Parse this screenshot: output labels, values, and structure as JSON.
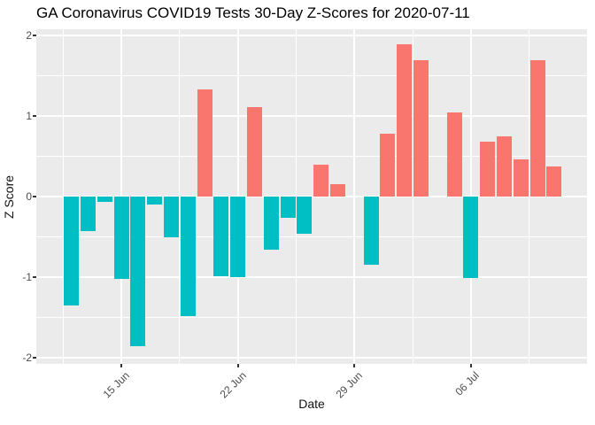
{
  "title": "GA Coronavirus COVID19 Tests 30-Day Z-Scores for 2020-07-11",
  "chart_data": {
    "type": "bar",
    "title": "GA Coronavirus COVID19 Tests 30-Day Z-Scores for 2020-07-11",
    "xlabel": "Date",
    "ylabel": "Z Score",
    "x": [
      "2020-06-12",
      "2020-06-13",
      "2020-06-14",
      "2020-06-15",
      "2020-06-16",
      "2020-06-17",
      "2020-06-18",
      "2020-06-19",
      "2020-06-20",
      "2020-06-21",
      "2020-06-22",
      "2020-06-23",
      "2020-06-24",
      "2020-06-25",
      "2020-06-26",
      "2020-06-27",
      "2020-06-28",
      "2020-06-29",
      "2020-06-30",
      "2020-07-01",
      "2020-07-02",
      "2020-07-03",
      "2020-07-04",
      "2020-07-05",
      "2020-07-06",
      "2020-07-07",
      "2020-07-08",
      "2020-07-09",
      "2020-07-10",
      "2020-07-11"
    ],
    "values": [
      -1.35,
      -0.43,
      -0.07,
      -1.02,
      -1.86,
      -0.1,
      -0.51,
      -1.49,
      1.33,
      -0.99,
      -1.0,
      1.11,
      -0.66,
      -0.26,
      -0.46,
      0.4,
      0.15,
      0.0,
      -0.85,
      0.78,
      1.89,
      1.69,
      0.0,
      1.05,
      -1.01,
      0.68,
      0.75,
      0.46,
      1.7,
      0.37
    ],
    "xticks": [
      {
        "label": "15 Jun",
        "date": "2020-06-15"
      },
      {
        "label": "22 Jun",
        "date": "2020-06-22"
      },
      {
        "label": "29 Jun",
        "date": "2020-06-29"
      },
      {
        "label": "06 Jul",
        "date": "2020-07-06"
      }
    ],
    "yticks": [
      "2",
      "1",
      "0",
      "-1",
      "-2"
    ],
    "ylim": [
      -2.08,
      2.08
    ],
    "grid": "major and minor, white on gray panel",
    "legend": "none",
    "colors": {
      "positive": "#F8766D",
      "negative": "#00BFC4",
      "panel_bg": "#EBEBEB",
      "gridline": "#FFFFFF",
      "axis_text": "#4D4D4D",
      "tick_mark": "#333333",
      "title_text": "#000000"
    }
  }
}
